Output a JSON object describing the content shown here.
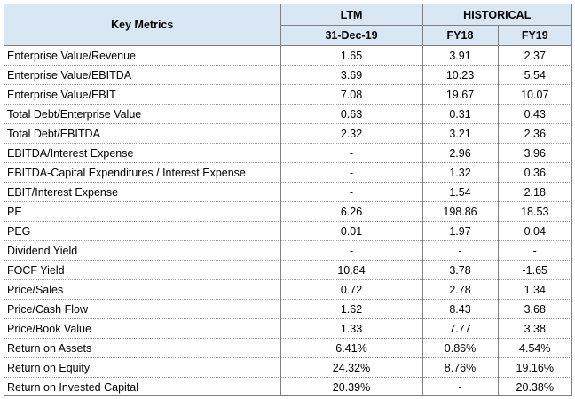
{
  "header": {
    "metric_label": "Key Metrics",
    "ltm_label": "LTM",
    "ltm_date": "31-Dec-19",
    "historical_label": "HISTORICAL",
    "fy18_label": "FY18",
    "fy19_label": "FY19"
  },
  "rows": [
    {
      "metric": "Enterprise Value/Revenue",
      "ltm": "1.65",
      "fy18": "3.91",
      "fy19": "2.37"
    },
    {
      "metric": "Enterprise Value/EBITDA",
      "ltm": "3.69",
      "fy18": "10.23",
      "fy19": "5.54"
    },
    {
      "metric": "Enterprise Value/EBIT",
      "ltm": "7.08",
      "fy18": "19.67",
      "fy19": "10.07"
    },
    {
      "metric": "Total Debt/Enterprise Value",
      "ltm": "0.63",
      "fy18": "0.31",
      "fy19": "0.43"
    },
    {
      "metric": "Total Debt/EBITDA",
      "ltm": "2.32",
      "fy18": "3.21",
      "fy19": "2.36"
    },
    {
      "metric": "EBITDA/Interest Expense",
      "ltm": "-",
      "fy18": "2.96",
      "fy19": "3.96"
    },
    {
      "metric": "EBITDA-Capital Expenditures / Interest Expense",
      "ltm": "-",
      "fy18": "1.32",
      "fy19": "0.36"
    },
    {
      "metric": "EBIT/Interest Expense",
      "ltm": "-",
      "fy18": "1.54",
      "fy19": "2.18"
    },
    {
      "metric": "PE",
      "ltm": "6.26",
      "fy18": "198.86",
      "fy19": "18.53"
    },
    {
      "metric": "PEG",
      "ltm": "0.01",
      "fy18": "1.97",
      "fy19": "0.04"
    },
    {
      "metric": "Dividend Yield",
      "ltm": "-",
      "fy18": "-",
      "fy19": "-"
    },
    {
      "metric": "FOCF Yield",
      "ltm": "10.84",
      "fy18": "3.78",
      "fy19": "-1.65"
    },
    {
      "metric": "Price/Sales",
      "ltm": "0.72",
      "fy18": "2.78",
      "fy19": "1.34"
    },
    {
      "metric": "Price/Cash Flow",
      "ltm": "1.62",
      "fy18": "8.43",
      "fy19": "3.68"
    },
    {
      "metric": "Price/Book Value",
      "ltm": "1.33",
      "fy18": "7.77",
      "fy19": "3.38"
    },
    {
      "metric": "Return on Assets",
      "ltm": "6.41%",
      "fy18": "0.86%",
      "fy19": "4.54%"
    },
    {
      "metric": "Return on Equity",
      "ltm": "24.32%",
      "fy18": "8.76%",
      "fy19": "19.16%"
    },
    {
      "metric": "Return on Invested Capital",
      "ltm": "20.39%",
      "fy18": "-",
      "fy19": "20.38%"
    }
  ]
}
